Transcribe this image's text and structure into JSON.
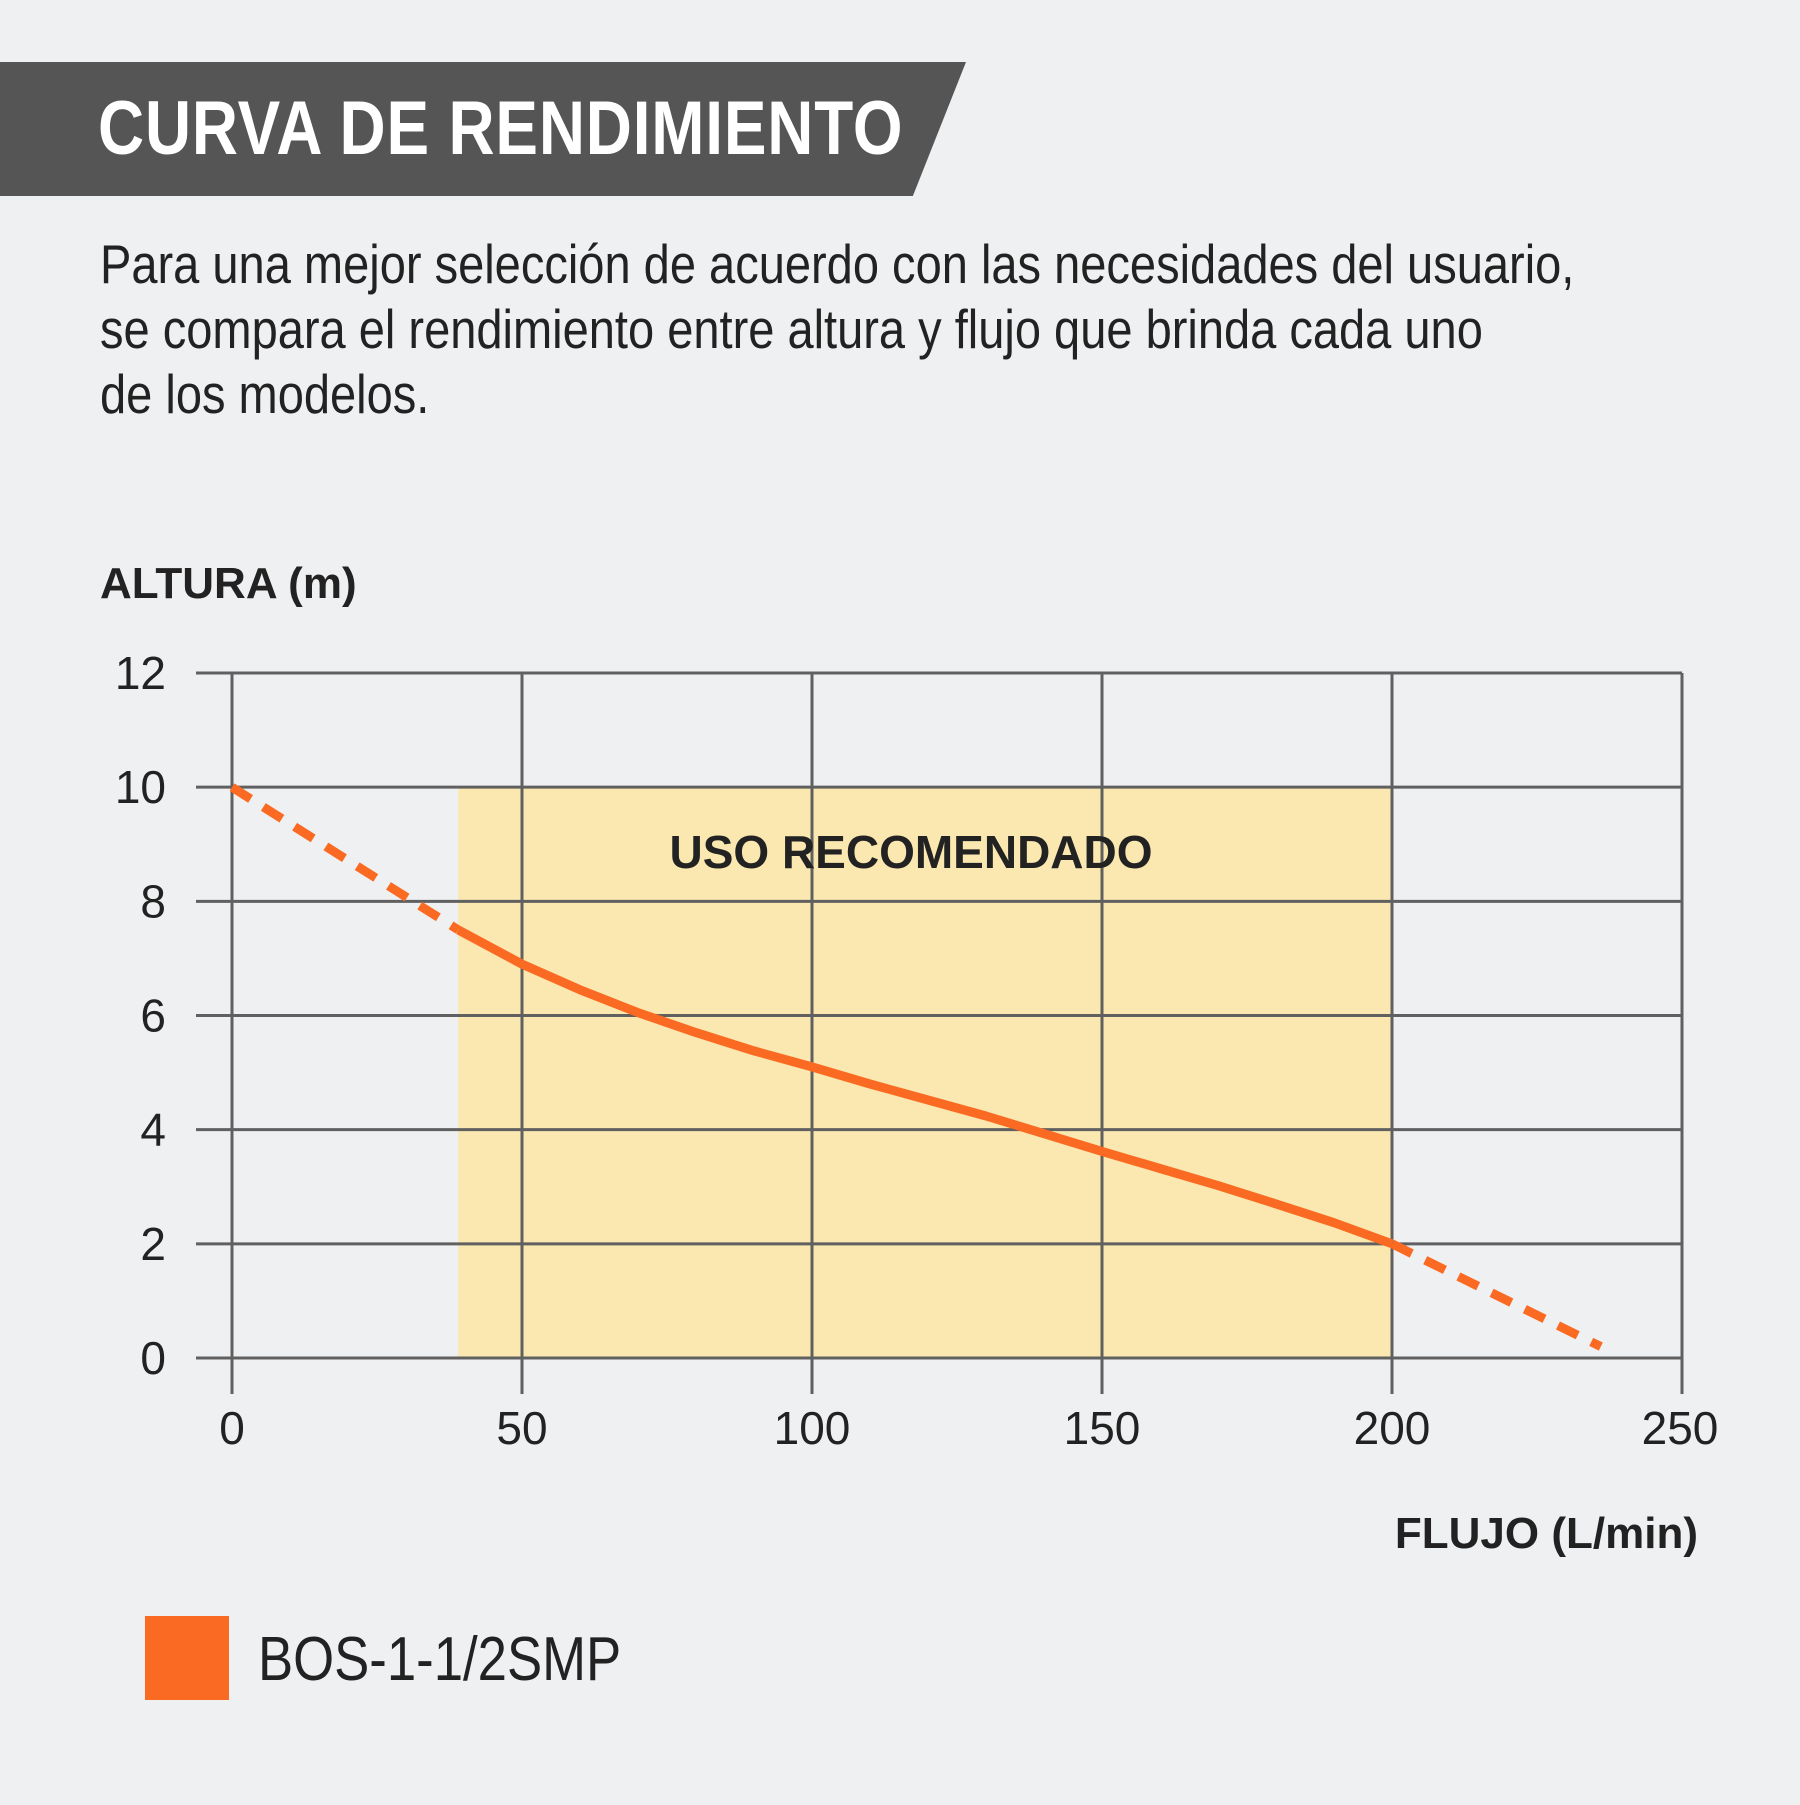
{
  "header": {
    "title": "CURVA DE RENDIMIENTO"
  },
  "description": {
    "lines": [
      "Para una mejor selección de acuerdo con las necesidades del usuario,",
      "se compara el rendimiento entre altura y flujo que brinda cada uno",
      "de los modelos."
    ]
  },
  "colors": {
    "header_band": "#555555",
    "curve": "#fb6a22",
    "recommended_zone": "#fbe7b0",
    "grid": "#606060"
  },
  "chart_data": {
    "type": "line",
    "title": "",
    "xlabel": "FLUJO (L/min)",
    "ylabel": "ALTURA (m)",
    "xlim": [
      0,
      250
    ],
    "ylim": [
      0,
      12
    ],
    "x_ticks": [
      "0",
      "50",
      "100",
      "150",
      "200",
      "250"
    ],
    "y_ticks": [
      "0",
      "2",
      "4",
      "6",
      "8",
      "10",
      "12"
    ],
    "grid": true,
    "legend_position": "bottom-left",
    "recommended_zone": {
      "label": "USO RECOMENDADO",
      "x": [
        39,
        200
      ],
      "y": [
        0,
        10
      ]
    },
    "series": [
      {
        "name": "BOS-1-1/2SMP",
        "color": "#fb6a22",
        "solid_points": [
          {
            "x": 39,
            "y": 7.5
          },
          {
            "x": 50,
            "y": 6.9
          },
          {
            "x": 60,
            "y": 6.45
          },
          {
            "x": 70,
            "y": 6.05
          },
          {
            "x": 80,
            "y": 5.7
          },
          {
            "x": 90,
            "y": 5.38
          },
          {
            "x": 100,
            "y": 5.1
          },
          {
            "x": 110,
            "y": 4.8
          },
          {
            "x": 120,
            "y": 4.52
          },
          {
            "x": 130,
            "y": 4.24
          },
          {
            "x": 140,
            "y": 3.93
          },
          {
            "x": 150,
            "y": 3.62
          },
          {
            "x": 160,
            "y": 3.32
          },
          {
            "x": 170,
            "y": 3.02
          },
          {
            "x": 180,
            "y": 2.7
          },
          {
            "x": 190,
            "y": 2.37
          },
          {
            "x": 200,
            "y": 2.0
          }
        ],
        "dashed_segments": [
          [
            {
              "x": 0,
              "y": 10
            },
            {
              "x": 39,
              "y": 7.5
            }
          ],
          [
            {
              "x": 200,
              "y": 2.0
            },
            {
              "x": 236,
              "y": 0.2
            }
          ]
        ]
      }
    ]
  }
}
